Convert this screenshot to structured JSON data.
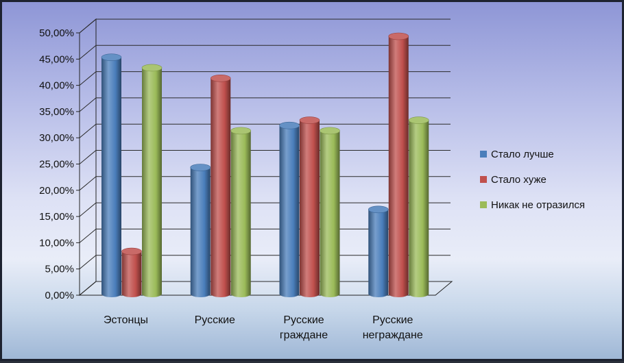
{
  "chart_data": {
    "type": "bar",
    "title": "",
    "xlabel": "",
    "ylabel": "",
    "ylim": [
      0,
      50
    ],
    "y_tick_step": 5,
    "y_tick_format": "percent_2dp_comma",
    "grid": true,
    "legend_position": "right",
    "categories": [
      [
        "Эстонцы"
      ],
      [
        "Русские"
      ],
      [
        "Русские",
        "граждане"
      ],
      [
        "Русские",
        "неграждане"
      ]
    ],
    "series": [
      {
        "name": "Стало лучше",
        "color": "#4a7ebb",
        "values": [
          46,
          25,
          33,
          17
        ]
      },
      {
        "name": "Стало хуже",
        "color": "#c0504d",
        "values": [
          9,
          42,
          34,
          50
        ]
      },
      {
        "name": "Никак не отразился",
        "color": "#9bbb59",
        "values": [
          44,
          32,
          32,
          34
        ]
      }
    ]
  }
}
